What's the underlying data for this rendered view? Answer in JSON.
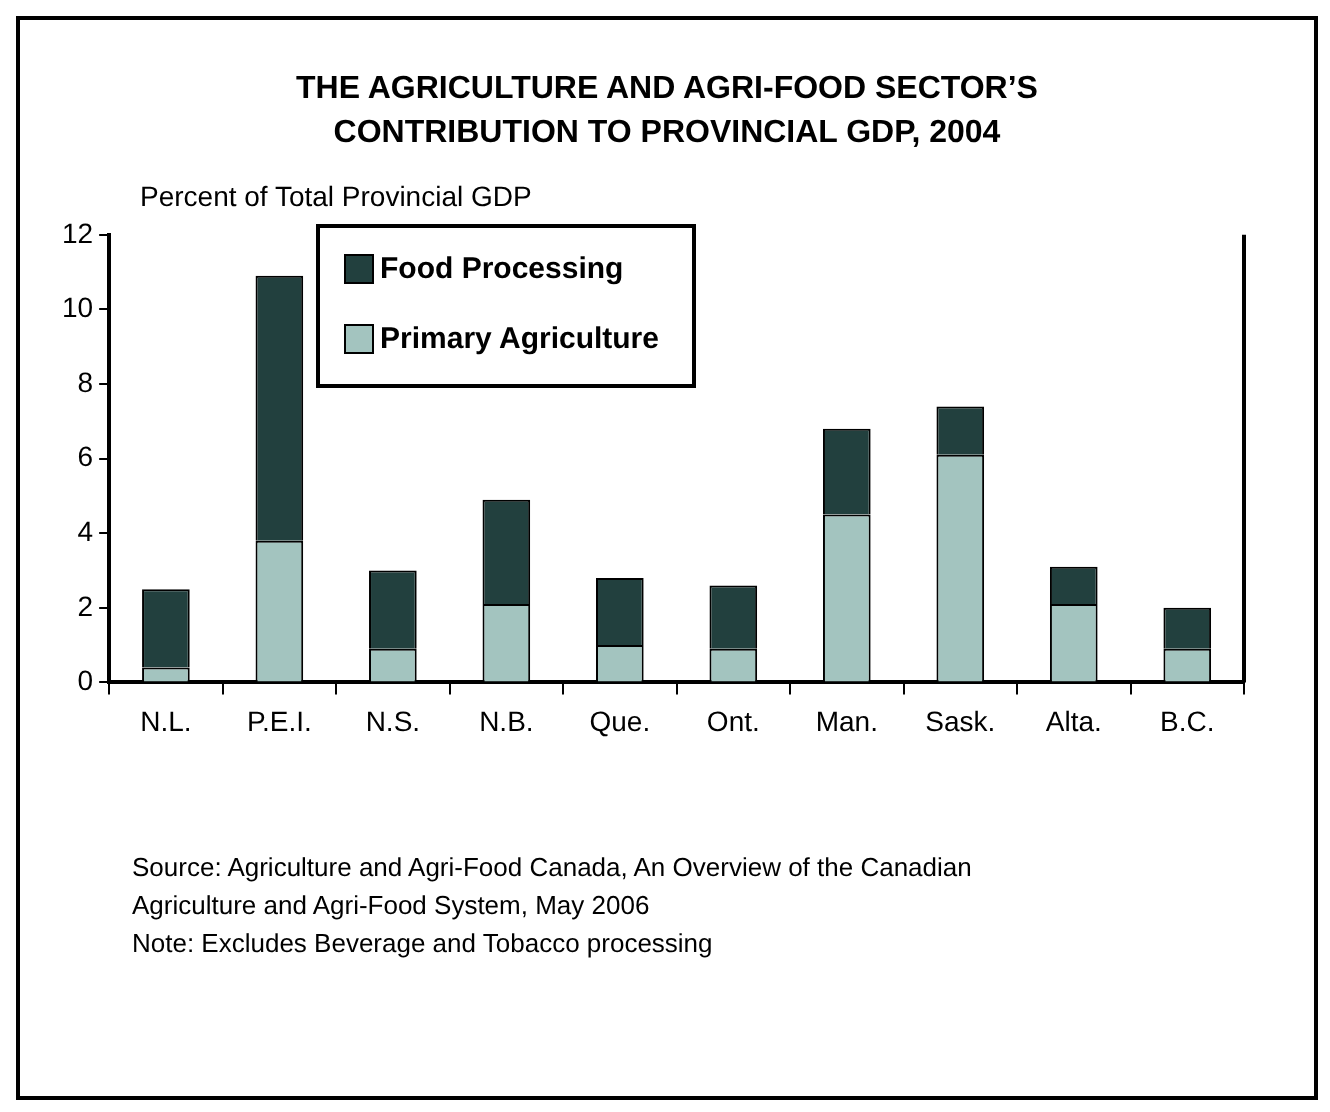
{
  "chart_data": {
    "type": "bar",
    "title": "THE AGRICULTURE AND AGRI-FOOD SECTOR’S CONTRIBUTION TO PROVINCIAL GDP, 2004",
    "ylabel": "Percent of Total Provincial GDP",
    "categories": [
      "N.L.",
      "P.E.I.",
      "N.S.",
      "N.B.",
      "Que.",
      "Ont.",
      "Man.",
      "Sask.",
      "Alta.",
      "B.C."
    ],
    "series": [
      {
        "name": "Primary Agriculture",
        "color": "#a3c4bf",
        "values": [
          0.4,
          3.8,
          0.9,
          2.1,
          1.0,
          0.9,
          4.5,
          6.1,
          2.1,
          0.9
        ]
      },
      {
        "name": "Food Processing",
        "color": "#22403e",
        "values": [
          2.1,
          7.1,
          2.1,
          2.8,
          1.8,
          1.7,
          2.3,
          1.3,
          1.0,
          1.1
        ]
      }
    ],
    "stacked": true,
    "ylim": [
      0,
      12
    ],
    "yticks": [
      0,
      2,
      4,
      6,
      8,
      10,
      12
    ],
    "grid": false,
    "legend": "top left",
    "annotations": [
      "Source:  Agriculture and Agri-Food Canada, An Overview of the Canadian Agriculture and Agri-Food System, May 2006",
      "Note: Excludes Beverage and Tobacco processing"
    ]
  }
}
